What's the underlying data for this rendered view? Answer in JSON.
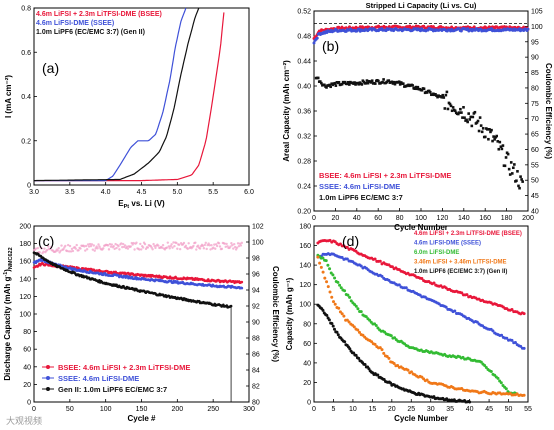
{
  "watermark": "大观视频",
  "chart_data": [
    {
      "id": "a",
      "type": "line",
      "panel_label": "(a)",
      "xlabel_main": "E",
      "xlabel_sub": "Pt",
      "xlabel_tail": " vs. Li (V)",
      "ylabel": "I (mA cm⁻²)",
      "xlim": [
        3.0,
        6.0
      ],
      "ylim": [
        0,
        0.8
      ],
      "xticks": [
        3.0,
        3.5,
        4.0,
        4.5,
        5.0,
        5.5,
        6.0
      ],
      "yticks": [
        0,
        0.2,
        0.4,
        0.6,
        0.8
      ],
      "grid": false,
      "legend_position": "top-left",
      "series": [
        {
          "name": "4.6m LiFSI + 2.3m LiTFSI-DME (BSEE)",
          "color": "#e8173a",
          "x": [
            3.0,
            4.5,
            5.0,
            5.2,
            5.3,
            5.4,
            5.5,
            5.6,
            5.65
          ],
          "y": [
            0.02,
            0.02,
            0.025,
            0.045,
            0.09,
            0.2,
            0.4,
            0.62,
            0.78
          ]
        },
        {
          "name": "4.6m LiFSI-DME (SSEE)",
          "color": "#3f51d8",
          "x": [
            3.0,
            4.0,
            4.1,
            4.2,
            4.35,
            4.45,
            4.6,
            4.7,
            4.8,
            4.9,
            4.97,
            5.05,
            5.12
          ],
          "y": [
            0.02,
            0.02,
            0.04,
            0.09,
            0.17,
            0.2,
            0.2,
            0.23,
            0.33,
            0.48,
            0.62,
            0.74,
            0.8
          ]
        },
        {
          "name": "1.0m LiPF6 (EC/EMC 3:7) (Gen II)",
          "color": "#111111",
          "x": [
            3.0,
            4.2,
            4.4,
            4.6,
            4.75,
            4.85,
            4.95,
            5.05,
            5.15,
            5.25,
            5.3
          ],
          "y": [
            0.02,
            0.025,
            0.05,
            0.1,
            0.15,
            0.22,
            0.34,
            0.5,
            0.64,
            0.76,
            0.8
          ]
        }
      ]
    },
    {
      "id": "b",
      "type": "scatter",
      "panel_label": "(b)",
      "title": "Stripped Li Capacity (Li vs. Cu)",
      "xlabel": "Cycle Number",
      "ylabel": "Areal Capacity (mAh cm⁻²)",
      "y2label": "Coulombic Efficiency (%)",
      "xlim": [
        0,
        200
      ],
      "ylim": [
        0.2,
        0.52
      ],
      "y2lim": [
        40,
        105
      ],
      "xticks": [
        0,
        20,
        40,
        60,
        80,
        100,
        120,
        140,
        160,
        180,
        200
      ],
      "yticks": [
        0.2,
        0.24,
        0.28,
        0.32,
        0.36,
        0.4,
        0.44,
        0.48,
        0.52
      ],
      "y2ticks": [
        40,
        45,
        50,
        55,
        60,
        65,
        70,
        75,
        80,
        85,
        90,
        95,
        100,
        105
      ],
      "reference_line_y": 0.5,
      "legend_position": "bottom-left",
      "series": [
        {
          "name": "BSEE: 4.6m LiFSI + 2.3m LiTFSI-DME",
          "color": "#e8173a",
          "axis": "left",
          "x": [
            0,
            5,
            20,
            60,
            100,
            140,
            180,
            200
          ],
          "y": [
            0.476,
            0.488,
            0.492,
            0.494,
            0.494,
            0.493,
            0.493,
            0.492
          ]
        },
        {
          "name": "SSEE: 4.6m LiFSI-DME",
          "color": "#3f51d8",
          "axis": "left",
          "x": [
            0,
            5,
            20,
            60,
            100,
            140,
            180,
            200
          ],
          "y": [
            0.47,
            0.484,
            0.489,
            0.49,
            0.49,
            0.49,
            0.49,
            0.49
          ]
        },
        {
          "name": "1.0m LiPF6 EC/EMC 3:7",
          "color": "#111111",
          "axis": "left",
          "x": [
            2,
            10,
            20,
            40,
            60,
            70,
            80,
            100,
            120,
            140,
            160,
            170,
            180,
            190,
            195
          ],
          "y": [
            0.415,
            0.4,
            0.403,
            0.405,
            0.407,
            0.408,
            0.404,
            0.395,
            0.38,
            0.36,
            0.33,
            0.31,
            0.28,
            0.255,
            0.238
          ]
        }
      ]
    },
    {
      "id": "c",
      "type": "scatter",
      "panel_label": "(c)",
      "xlabel": "Cycle #",
      "ylabel_main": "Discharge Capacity (mAh g",
      "ylabel_sup": "-1",
      "ylabel_tail": ")",
      "ylabel_sub": "NMC622",
      "y2label": "Coulombic Efficiency (%)",
      "xlim": [
        0,
        300
      ],
      "ylim": [
        0,
        200
      ],
      "y2lim": [
        80,
        102
      ],
      "xticks": [
        0,
        50,
        100,
        150,
        200,
        250,
        300
      ],
      "yticks": [
        0,
        20,
        40,
        60,
        80,
        100,
        120,
        140,
        160,
        180,
        200
      ],
      "y2ticks": [
        80,
        82,
        84,
        86,
        88,
        90,
        92,
        94,
        96,
        98,
        100,
        102
      ],
      "legend_position": "bottom-left",
      "series": [
        {
          "name": "BSEE: 4.6m LiFSI + 2.3m LiTFSI-DME",
          "color": "#e8173a",
          "axis": "left",
          "x": [
            0,
            10,
            30,
            60,
            100,
            150,
            200,
            250,
            290
          ],
          "y": [
            152,
            157,
            155,
            152,
            148,
            144,
            141,
            138,
            136
          ]
        },
        {
          "name": "SSEE: 4.6m LiFSI-DME",
          "color": "#3f51d8",
          "axis": "left",
          "x": [
            0,
            10,
            30,
            60,
            100,
            150,
            200,
            250,
            290
          ],
          "y": [
            158,
            162,
            156,
            150,
            145,
            140,
            136,
            132,
            130
          ]
        },
        {
          "name": "Gen II: 1.0m LiPF6 EC/EMC 3:7",
          "color": "#111111",
          "axis": "left",
          "x": [
            0,
            10,
            30,
            60,
            100,
            150,
            200,
            250,
            275
          ],
          "y": [
            170,
            165,
            155,
            145,
            135,
            126,
            118,
            111,
            108
          ]
        },
        {
          "name": "Coulombic Efficiency",
          "color": "#f2a0c8",
          "axis": "right",
          "x": [
            0,
            50,
            100,
            150,
            200,
            250,
            290
          ],
          "y": [
            99.0,
            99.2,
            99.4,
            99.5,
            99.5,
            99.5,
            99.5
          ]
        }
      ]
    },
    {
      "id": "d",
      "type": "scatter",
      "panel_label": "(d)",
      "xlabel": "Cycle Number",
      "ylabel": "Capacity (mAh g⁻¹)",
      "xlim": [
        0,
        55
      ],
      "ylim": [
        0,
        180
      ],
      "xticks": [
        0,
        5,
        10,
        15,
        20,
        25,
        30,
        35,
        40,
        45,
        50,
        55
      ],
      "yticks": [
        0,
        20,
        40,
        60,
        80,
        100,
        120,
        140,
        160,
        180
      ],
      "legend_position": "top-right",
      "series": [
        {
          "name": "4.6m LiFSI + 2.3m LiTFSI-DME (BSEE)",
          "color": "#e8173a",
          "x": [
            1,
            3,
            5,
            10,
            20,
            30,
            40,
            50,
            54
          ],
          "y": [
            163,
            165,
            164,
            155,
            138,
            122,
            108,
            95,
            90
          ]
        },
        {
          "name": "4.6m LiFSI-DME (SSEE)",
          "color": "#3f51d8",
          "x": [
            1,
            3,
            5,
            10,
            20,
            30,
            40,
            50,
            54
          ],
          "y": [
            148,
            152,
            151,
            143,
            123,
            104,
            85,
            64,
            55
          ]
        },
        {
          "name": "6.0m LiFSI-DME",
          "color": "#33bb33",
          "x": [
            1,
            3,
            5,
            8,
            12,
            17,
            25,
            35,
            40,
            43,
            47,
            50,
            52
          ],
          "y": [
            150,
            145,
            128,
            112,
            92,
            74,
            55,
            47,
            44,
            40,
            25,
            10,
            8
          ]
        },
        {
          "name": "3.46m LiFSI + 3.46m LiTFSI-DME",
          "color": "#f07818",
          "x": [
            1,
            3,
            5,
            8,
            12,
            17,
            20,
            25,
            30,
            40,
            50,
            54
          ],
          "y": [
            148,
            125,
            103,
            85,
            70,
            55,
            40,
            30,
            20,
            11,
            8,
            7
          ]
        },
        {
          "name": "1.0m LiPF6 (EC/EMC 3:7) (Gen II)",
          "color": "#111111",
          "x": [
            1,
            3,
            6,
            10,
            15,
            20,
            25,
            30,
            35,
            40
          ],
          "y": [
            99,
            90,
            70,
            50,
            30,
            18,
            10,
            5,
            2,
            0
          ]
        }
      ]
    }
  ]
}
